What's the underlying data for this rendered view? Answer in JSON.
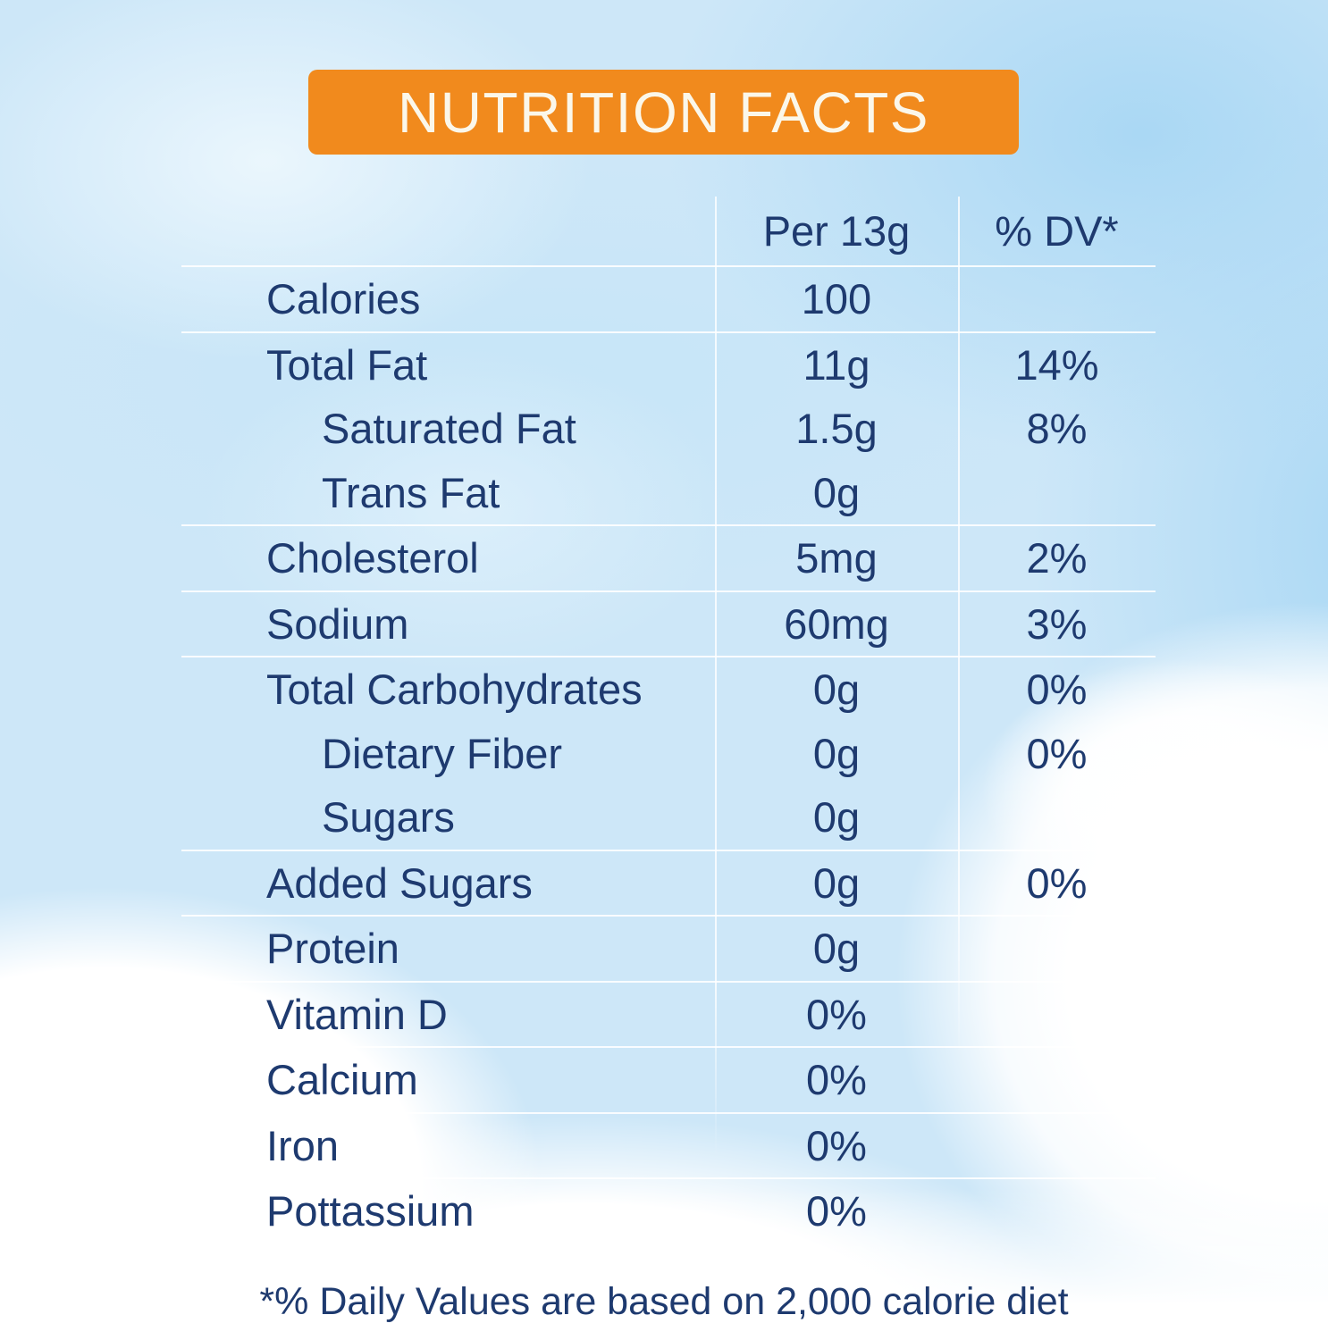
{
  "title_banner": {
    "text": "NUTRITION FACTS"
  },
  "table": {
    "amount_header": "Per 13g",
    "dv_header": "% DV*",
    "rows": [
      {
        "label": "Calories",
        "amount": "100",
        "dv": "",
        "indent": false,
        "sep": true
      },
      {
        "label": "Total Fat",
        "amount": "11g",
        "dv": "14%",
        "indent": false,
        "sep": false
      },
      {
        "label": "Saturated Fat",
        "amount": "1.5g",
        "dv": "8%",
        "indent": true,
        "sep": false
      },
      {
        "label": "Trans Fat",
        "amount": "0g",
        "dv": "",
        "indent": true,
        "sep": true
      },
      {
        "label": "Cholesterol",
        "amount": "5mg",
        "dv": "2%",
        "indent": false,
        "sep": true
      },
      {
        "label": "Sodium",
        "amount": "60mg",
        "dv": "3%",
        "indent": false,
        "sep": true
      },
      {
        "label": "Total Carbohydrates",
        "amount": "0g",
        "dv": "0%",
        "indent": false,
        "sep": false
      },
      {
        "label": "Dietary Fiber",
        "amount": "0g",
        "dv": "0%",
        "indent": true,
        "sep": false
      },
      {
        "label": "Sugars",
        "amount": "0g",
        "dv": "",
        "indent": true,
        "sep": true
      },
      {
        "label": "Added Sugars",
        "amount": "0g",
        "dv": "0%",
        "indent": false,
        "sep": true
      },
      {
        "label": "Protein",
        "amount": "0g",
        "dv": "",
        "indent": false,
        "sep": true
      },
      {
        "label": "Vitamin D",
        "amount": "0%",
        "dv": "",
        "indent": false,
        "sep": true
      },
      {
        "label": "Calcium",
        "amount": "0%",
        "dv": "",
        "indent": false,
        "sep": true
      },
      {
        "label": "Iron",
        "amount": "0%",
        "dv": "",
        "indent": false,
        "sep": true
      },
      {
        "label": "Pottassium",
        "amount": "0%",
        "dv": "",
        "indent": false,
        "sep": false
      }
    ]
  },
  "footnote": "*% Daily Values are based on 2,000 calorie diet",
  "colors": {
    "banner_orange": "#F18A1D",
    "text_navy": "#1E3A6F"
  }
}
